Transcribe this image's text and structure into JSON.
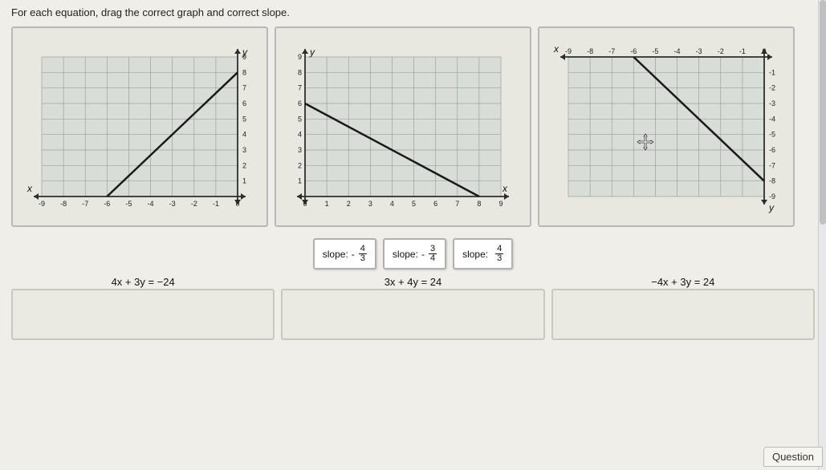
{
  "instruction": "For each equation, drag the correct graph and correct slope.",
  "graphs": [
    {
      "grid_color": "#9aa39a",
      "background": "#d8ddd8",
      "axis_color": "#2d2d2d",
      "line_color": "#1a1a1a",
      "x_label": "x",
      "y_label": "y",
      "x_domain": [
        -9,
        0
      ],
      "y_domain": [
        0,
        9
      ],
      "x_ticks": [
        "-9",
        "-8",
        "-7",
        "-6",
        "-5",
        "-4",
        "-3",
        "-2",
        "-1",
        "0"
      ],
      "y_ticks": [
        "1",
        "2",
        "3",
        "4",
        "5",
        "6",
        "7",
        "8",
        "9"
      ],
      "line_points": [
        [
          -6,
          0
        ],
        [
          0,
          8
        ]
      ]
    },
    {
      "grid_color": "#9aa39a",
      "background": "#d8ddd8",
      "axis_color": "#2d2d2d",
      "line_color": "#1a1a1a",
      "x_label": "x",
      "y_label": "y",
      "x_domain": [
        0,
        9
      ],
      "y_domain": [
        0,
        9
      ],
      "x_ticks": [
        "0",
        "1",
        "2",
        "3",
        "4",
        "5",
        "6",
        "7",
        "8",
        "9"
      ],
      "y_ticks": [
        "1",
        "2",
        "3",
        "4",
        "5",
        "6",
        "7",
        "8",
        "9"
      ],
      "line_points": [
        [
          0,
          6
        ],
        [
          8,
          0
        ]
      ]
    },
    {
      "grid_color": "#9aa39a",
      "background": "#d8ddd8",
      "axis_color": "#2d2d2d",
      "line_color": "#1a1a1a",
      "x_label": "x",
      "y_label": "y",
      "x_domain": [
        -9,
        0
      ],
      "y_domain": [
        -9,
        0
      ],
      "x_ticks": [
        "-9",
        "-8",
        "-7",
        "-6",
        "-5",
        "-4",
        "-3",
        "-2",
        "-1",
        "0"
      ],
      "y_ticks": [
        "-1",
        "-2",
        "-3",
        "-4",
        "-5",
        "-6",
        "-7",
        "-8",
        "-9"
      ],
      "line_points": [
        [
          -6,
          0
        ],
        [
          0,
          -8
        ]
      ]
    }
  ],
  "slopes": [
    {
      "label": "slope:",
      "sign": "-",
      "num": "4",
      "den": "3"
    },
    {
      "label": "slope:",
      "sign": "-",
      "num": "3",
      "den": "4"
    },
    {
      "label": "slope:",
      "sign": "",
      "num": "4",
      "den": "3"
    }
  ],
  "equations": [
    "4x + 3y = −24",
    "3x + 4y = 24",
    "−4x + 3y = 24"
  ],
  "question_button": "Question",
  "colors": {
    "panel_border": "#b8b8b8",
    "page_bg": "#f0eee8"
  }
}
